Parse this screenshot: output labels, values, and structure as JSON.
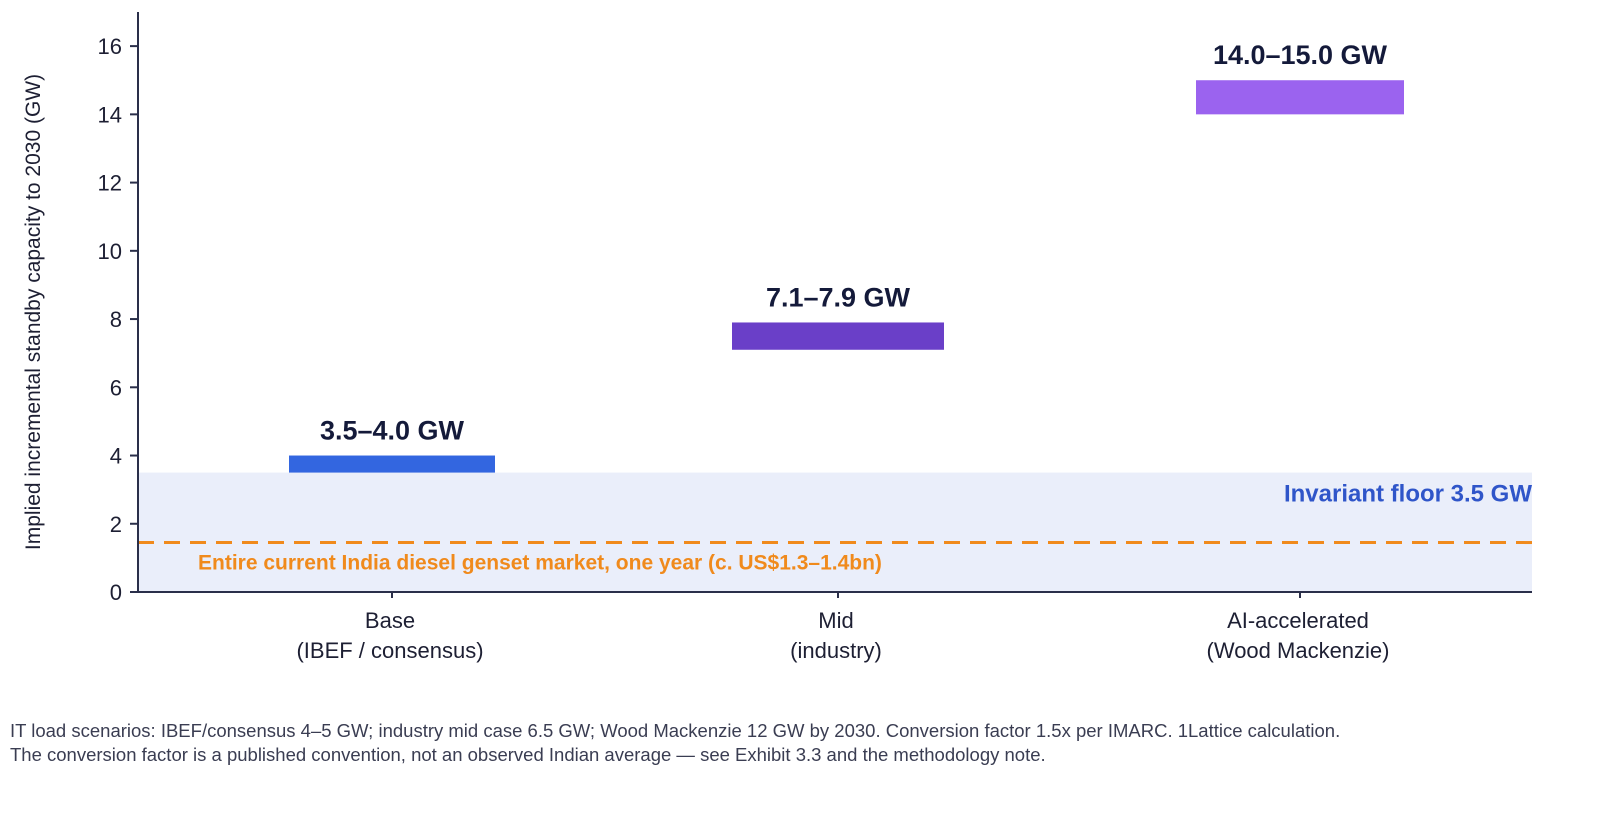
{
  "chart_data": {
    "type": "floating-bar",
    "ylabel": "Implied incremental standby capacity to 2030 (GW)",
    "ylim": [
      0,
      17
    ],
    "yticks": [
      0,
      2,
      4,
      6,
      8,
      10,
      12,
      14,
      16
    ],
    "grid": false,
    "categories": [
      [
        "Base",
        "(IBEF / consensus)"
      ],
      [
        "Mid",
        "(industry)"
      ],
      [
        "AI-accelerated",
        "(Wood Mackenzie)"
      ]
    ],
    "ranges": [
      {
        "low": 3.5,
        "high": 4.0,
        "label": "3.5–4.0 GW",
        "color": "#3366e0"
      },
      {
        "low": 7.1,
        "high": 7.9,
        "label": "7.1–7.9 GW",
        "color": "#6a3fc8"
      },
      {
        "low": 14.0,
        "high": 15.0,
        "label": "14.0–15.0 GW",
        "color": "#9b63ef"
      }
    ],
    "floor_band": {
      "low": 0,
      "high": 3.5,
      "label": "Invariant floor  3.5 GW",
      "color": "#eaeefa",
      "label_color": "#2f55c9"
    },
    "reference_line": {
      "value": 1.45,
      "label": "Entire current India diesel genset market, one year (c. US$1.3–1.4bn)",
      "color": "#f08a1c"
    }
  },
  "footnotes": [
    "IT load scenarios: IBEF/consensus 4–5 GW; industry mid case 6.5 GW; Wood Mackenzie 12 GW by 2030. Conversion factor 1.5x per IMARC. 1Lattice calculation.",
    "The conversion factor is a published convention, not an observed Indian average — see Exhibit 3.3 and the methodology note."
  ]
}
